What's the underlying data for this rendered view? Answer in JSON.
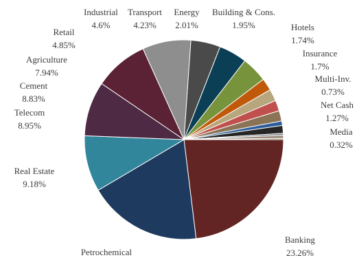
{
  "chart_data": {
    "type": "pie",
    "title": "",
    "start_angle_deg": 0,
    "direction": "clockwise",
    "legend": "none",
    "slices": [
      {
        "label": "Banking",
        "value": 23.26,
        "display": "23.26%",
        "color": "#632523"
      },
      {
        "label": "Petrochemical",
        "value": 18.64,
        "display": "",
        "color": "#1f3a5f"
      },
      {
        "label": "Real Estate",
        "value": 9.18,
        "display": "9.18%",
        "color": "#31869b"
      },
      {
        "label": "Telecom",
        "value": 8.95,
        "display": "8.95%",
        "color": "#4e2a45"
      },
      {
        "label": "Cement",
        "value": 8.83,
        "display": "8.83%",
        "color": "#5a2234"
      },
      {
        "label": "Agriculture",
        "value": 7.94,
        "display": "7.94%",
        "color": "#8e8e8e"
      },
      {
        "label": "Retail",
        "value": 4.85,
        "display": "4.85%",
        "color": "#4a4a4a"
      },
      {
        "label": "Industrial",
        "value": 4.6,
        "display": "4.6%",
        "color": "#0b3f55"
      },
      {
        "label": "Transport",
        "value": 4.23,
        "display": "4.23%",
        "color": "#77933c"
      },
      {
        "label": "Energy",
        "value": 2.01,
        "display": "2.01%",
        "color": "#c05a0a"
      },
      {
        "label": "Building & Cons.",
        "value": 1.95,
        "display": "1.95%",
        "color": "#b8a67c"
      },
      {
        "label": "Hotels",
        "value": 1.74,
        "display": "1.74%",
        "color": "#c0504d"
      },
      {
        "label": "Insurance",
        "value": 1.7,
        "display": "1.7%",
        "color": "#8b7355"
      },
      {
        "label": "Multi-Inv.",
        "value": 0.73,
        "display": "0.73%",
        "color": "#2e5e9e"
      },
      {
        "label": "Net Cash",
        "value": 1.27,
        "display": "1.27%",
        "color": "#262626"
      },
      {
        "label": "Media",
        "value": 0.32,
        "display": "0.32%",
        "color": "#7f7f7f"
      },
      {
        "label": "",
        "value": 0.5,
        "display": "",
        "color": "#9b8a7d"
      },
      {
        "label": "",
        "value": 0.2,
        "display": "",
        "color": "#4f6228"
      }
    ]
  }
}
